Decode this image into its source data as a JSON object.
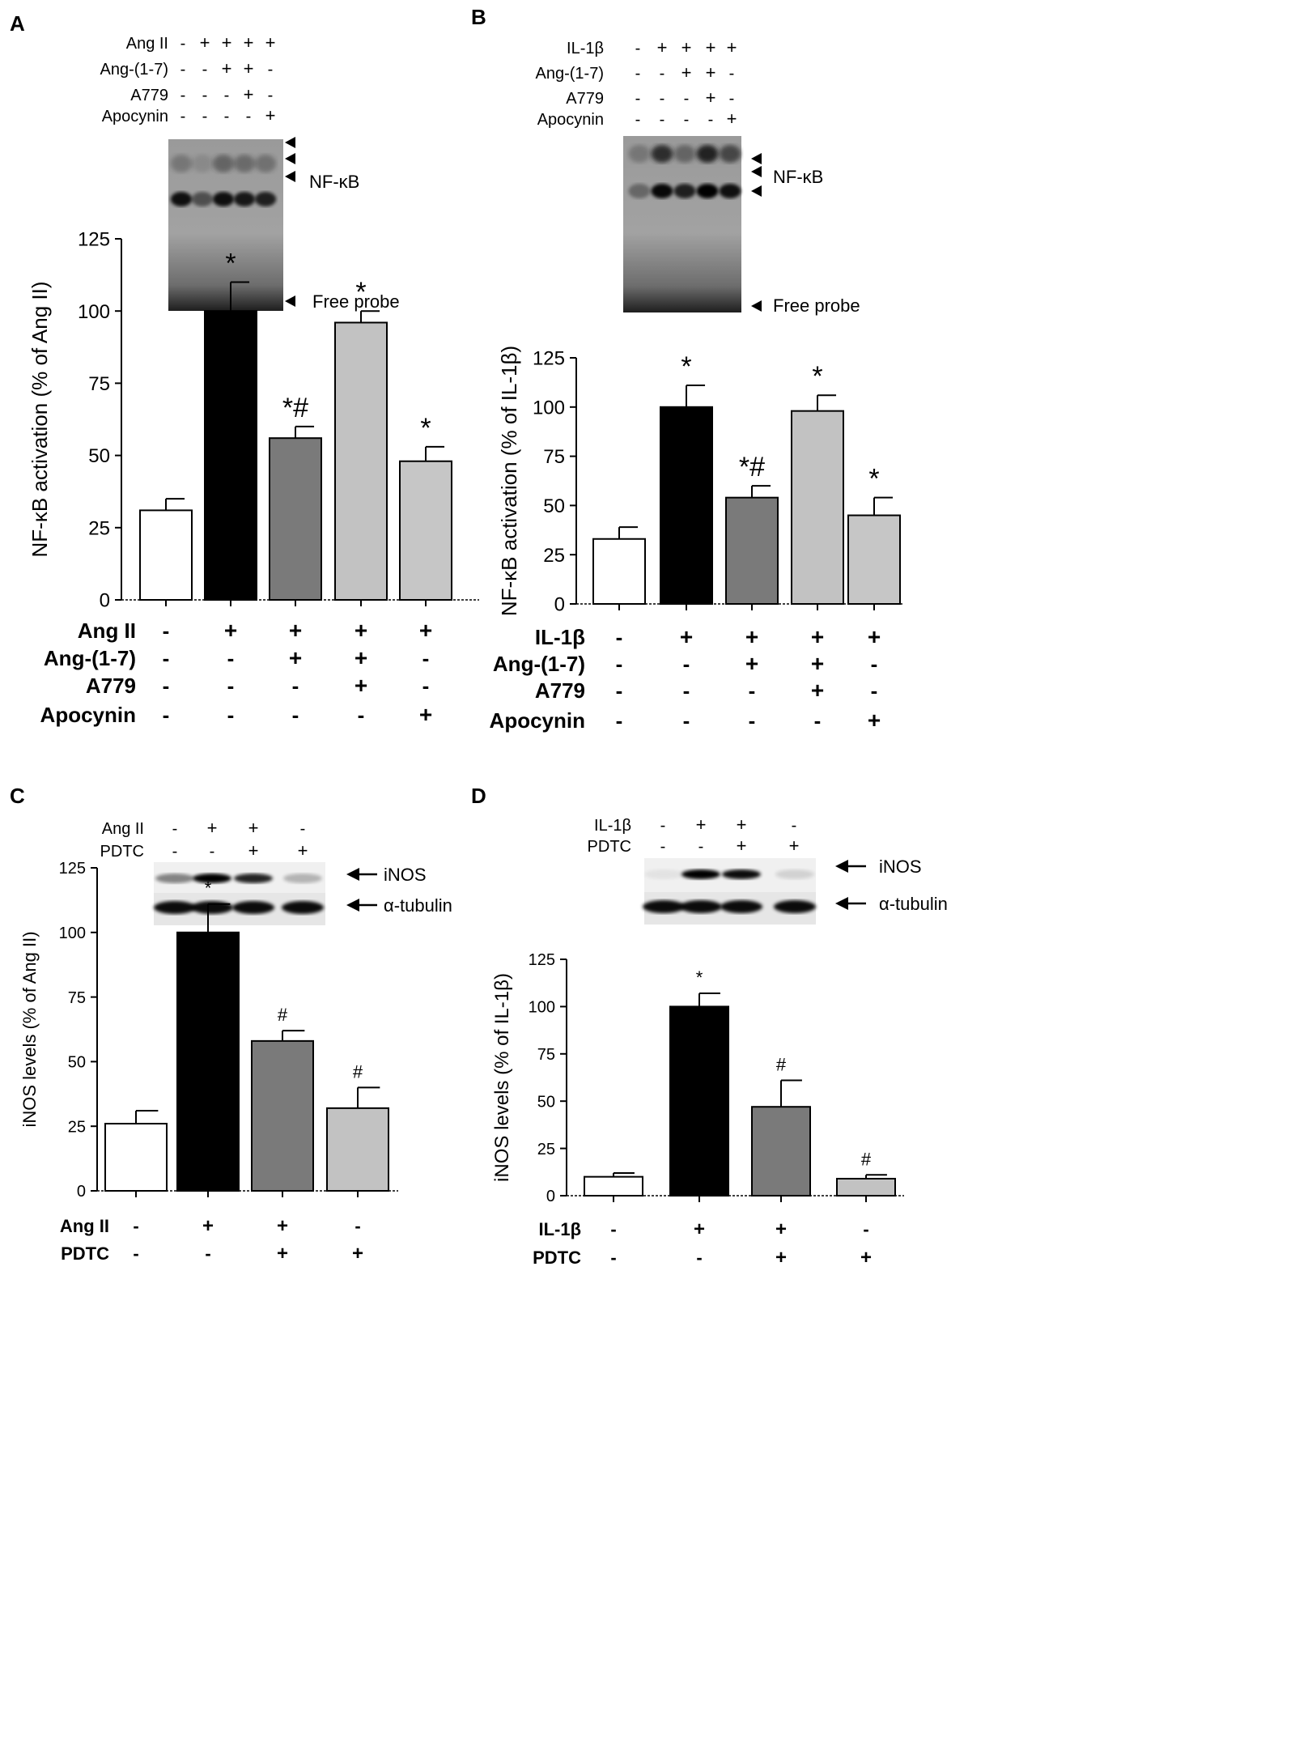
{
  "panels": [
    {
      "id": "A",
      "label": "A",
      "blot": {
        "type": "emsa",
        "rows": [
          {
            "name": "Ang II",
            "signs": [
              "-",
              "+",
              "+",
              "+",
              "+"
            ]
          },
          {
            "name": "Ang-(1-7)",
            "signs": [
              "-",
              "-",
              "+",
              "+",
              "-"
            ]
          },
          {
            "name": "A779",
            "signs": [
              "-",
              "-",
              "-",
              "+",
              "-"
            ]
          },
          {
            "name": "Apocynin",
            "signs": [
              "-",
              "-",
              "-",
              "-",
              "+"
            ]
          }
        ],
        "band_label": "NF-κB",
        "probe_label": "Free probe"
      },
      "chart": {
        "type": "bar",
        "ylabel": "NF-κB activation (% of Ang II)",
        "ylim": [
          0,
          125
        ],
        "yticks": [
          "0",
          "25",
          "50",
          "75",
          "100",
          "125"
        ],
        "series": [
          {
            "values": [
              31,
              100,
              56,
              96,
              48
            ],
            "errors": [
              4,
              10,
              4,
              4,
              5
            ]
          }
        ],
        "bar_colors": [
          "#ffffff",
          "#000000",
          "#7a7a7a",
          "#c2c2c2",
          "#c6c6c6"
        ],
        "annotations": [
          "",
          "*",
          "*#",
          "*",
          "*"
        ],
        "rows": [
          {
            "name": "Ang II",
            "signs": [
              "-",
              "+",
              "+",
              "+",
              "+"
            ]
          },
          {
            "name": "Ang-(1-7)",
            "signs": [
              "-",
              "-",
              "+",
              "+",
              "-"
            ]
          },
          {
            "name": "A779",
            "signs": [
              "-",
              "-",
              "-",
              "+",
              "-"
            ]
          },
          {
            "name": "Apocynin",
            "signs": [
              "-",
              "-",
              "-",
              "-",
              "+"
            ]
          }
        ]
      }
    },
    {
      "id": "B",
      "label": "B",
      "blot": {
        "type": "emsa",
        "rows": [
          {
            "name": "IL-1β",
            "signs": [
              "-",
              "+",
              "+",
              "+",
              "+"
            ]
          },
          {
            "name": "Ang-(1-7)",
            "signs": [
              "-",
              "-",
              "+",
              "+",
              "-"
            ]
          },
          {
            "name": "A779",
            "signs": [
              "-",
              "-",
              "-",
              "+",
              "-"
            ]
          },
          {
            "name": "Apocynin",
            "signs": [
              "-",
              "-",
              "-",
              "-",
              "+"
            ]
          }
        ],
        "band_label": "NF-κB",
        "probe_label": "Free probe"
      },
      "chart": {
        "type": "bar",
        "ylabel": "NF-κB activation (% of IL-1β)",
        "ylim": [
          0,
          125
        ],
        "yticks": [
          "0",
          "25",
          "50",
          "75",
          "100",
          "125"
        ],
        "series": [
          {
            "values": [
              33,
              100,
              54,
              98,
              45
            ],
            "errors": [
              6,
              11,
              6,
              8,
              9
            ]
          }
        ],
        "bar_colors": [
          "#ffffff",
          "#000000",
          "#7a7a7a",
          "#c2c2c2",
          "#c6c6c6"
        ],
        "annotations": [
          "",
          "*",
          "*#",
          "*",
          "*"
        ],
        "rows": [
          {
            "name": "IL-1β",
            "signs": [
              "-",
              "+",
              "+",
              "+",
              "+"
            ]
          },
          {
            "name": "Ang-(1-7)",
            "signs": [
              "-",
              "-",
              "+",
              "+",
              "-"
            ]
          },
          {
            "name": "A779",
            "signs": [
              "-",
              "-",
              "-",
              "+",
              "-"
            ]
          },
          {
            "name": "Apocynin",
            "signs": [
              "-",
              "-",
              "-",
              "-",
              "+"
            ]
          }
        ]
      }
    },
    {
      "id": "C",
      "label": "C",
      "blot": {
        "type": "western",
        "rows": [
          {
            "name": "Ang II",
            "signs": [
              "-",
              "+",
              "+",
              "-"
            ]
          },
          {
            "name": "PDTC",
            "signs": [
              "-",
              "-",
              "+",
              "+"
            ]
          }
        ],
        "bands": [
          "iNOS",
          "α-tubulin"
        ]
      },
      "chart": {
        "type": "bar",
        "ylabel": "iNOS levels (% of Ang II)",
        "ylim": [
          0,
          125
        ],
        "yticks": [
          "0",
          "25",
          "50",
          "75",
          "100",
          "125"
        ],
        "series": [
          {
            "values": [
              26,
              100,
              58,
              32
            ],
            "errors": [
              5,
              11,
              4,
              8
            ]
          }
        ],
        "bar_colors": [
          "#ffffff",
          "#000000",
          "#7a7a7a",
          "#c2c2c2"
        ],
        "annotations": [
          "",
          "*",
          "#",
          "#"
        ],
        "rows": [
          {
            "name": "Ang II",
            "signs": [
              "-",
              "+",
              "+",
              "-"
            ]
          },
          {
            "name": "PDTC",
            "signs": [
              "-",
              "-",
              "+",
              "+"
            ]
          }
        ]
      }
    },
    {
      "id": "D",
      "label": "D",
      "blot": {
        "type": "western",
        "rows": [
          {
            "name": "IL-1β",
            "signs": [
              "-",
              "+",
              "+",
              "-"
            ]
          },
          {
            "name": "PDTC",
            "signs": [
              "-",
              "-",
              "+",
              "+"
            ]
          }
        ],
        "bands": [
          "iNOS",
          "α-tubulin"
        ]
      },
      "chart": {
        "type": "bar",
        "ylabel": "iNOS levels (% of IL-1β)",
        "ylim": [
          0,
          125
        ],
        "yticks": [
          "0",
          "25",
          "50",
          "75",
          "100",
          "125"
        ],
        "series": [
          {
            "values": [
              10,
              100,
              47,
              9
            ],
            "errors": [
              2,
              7,
              14,
              2
            ]
          }
        ],
        "bar_colors": [
          "#ffffff",
          "#000000",
          "#7a7a7a",
          "#c2c2c2"
        ],
        "annotations": [
          "",
          "*",
          "#",
          "#"
        ],
        "rows": [
          {
            "name": "IL-1β",
            "signs": [
              "-",
              "+",
              "+",
              "-"
            ]
          },
          {
            "name": "PDTC",
            "signs": [
              "-",
              "-",
              "+",
              "+"
            ]
          }
        ]
      }
    }
  ]
}
